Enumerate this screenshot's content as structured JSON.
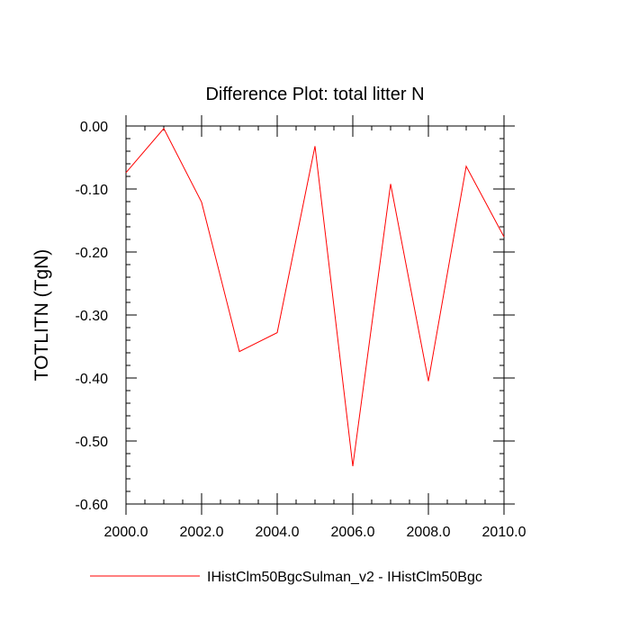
{
  "chart_data": {
    "type": "line",
    "title": "Difference Plot: total litter N",
    "xlabel": "",
    "ylabel": "TOTLITN  (TgN)",
    "xlim": [
      2000,
      2010
    ],
    "ylim": [
      -0.6,
      0.0
    ],
    "x_ticks": [
      "2000.0",
      "2002.0",
      "2004.0",
      "2006.0",
      "2008.0",
      "2010.0"
    ],
    "y_ticks": [
      "0.00",
      "-0.10",
      "-0.20",
      "-0.30",
      "-0.40",
      "-0.50",
      "-0.60"
    ],
    "grid": false,
    "legend_position": "bottom",
    "series": [
      {
        "name": "IHistClm50BgcSulman_v2 - IHistClm50Bgc",
        "color": "#ff0000",
        "x": [
          2000,
          2001,
          2002,
          2003,
          2004,
          2005,
          2006,
          2007,
          2008,
          2009,
          2010
        ],
        "values": [
          -0.074,
          -0.004,
          -0.121,
          -0.358,
          -0.328,
          -0.032,
          -0.54,
          -0.092,
          -0.405,
          -0.064,
          -0.176
        ]
      }
    ]
  }
}
